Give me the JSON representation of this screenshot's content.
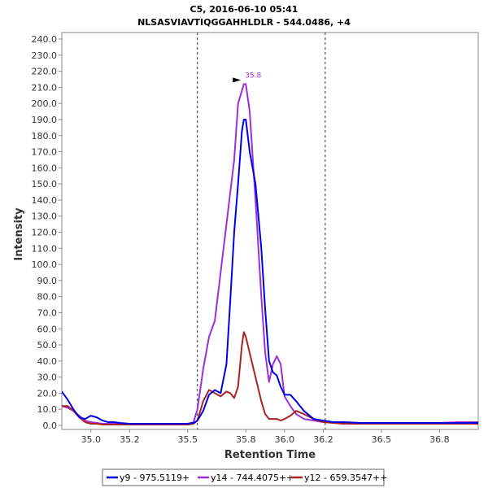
{
  "chart_data": {
    "type": "line",
    "title": "C5, 2016-06-10 05:41",
    "subtitle": "NLSASVIAVTIQGGAHHLDLR - 544.0486, +4",
    "xlabel": "Retention Time",
    "ylabel": "Intensity",
    "xlim": [
      34.85,
      37.0
    ],
    "ylim": [
      0,
      240
    ],
    "x_ticks": [
      35.0,
      35.2,
      35.5,
      35.8,
      36.0,
      36.2,
      36.5,
      36.8
    ],
    "x_tick_labels": [
      "35.0",
      "35.2",
      "35.5",
      "35.8",
      "36.0",
      "36.2",
      "36.5",
      "36.8"
    ],
    "y_ticks": [
      0,
      10,
      20,
      30,
      40,
      50,
      60,
      70,
      80,
      90,
      100,
      110,
      120,
      130,
      140,
      150,
      160,
      170,
      180,
      190,
      200,
      210,
      220,
      230,
      240
    ],
    "y_tick_labels": [
      "0.0",
      "10.0",
      "20.0",
      "30.0",
      "40.0",
      "50.0",
      "60.0",
      "70.0",
      "80.0",
      "90.0",
      "100.0",
      "110.0",
      "120.0",
      "130.0",
      "140.0",
      "150.0",
      "160.0",
      "170.0",
      "180.0",
      "190.0",
      "200.0",
      "210.0",
      "220.0",
      "230.0",
      "240.0"
    ],
    "integration_bounds": [
      35.55,
      36.21
    ],
    "peak_annotation": {
      "label": "35.8",
      "x": 35.8,
      "y": 212,
      "color": "#9b30d9"
    },
    "legend_placement": "bottom",
    "grid": false,
    "series": [
      {
        "name": "y9 - 975.5119+",
        "color": "#0000e6",
        "x": [
          34.85,
          34.88,
          34.91,
          34.94,
          34.97,
          35.0,
          35.03,
          35.06,
          35.09,
          35.12,
          35.15,
          35.2,
          35.25,
          35.3,
          35.35,
          35.4,
          35.45,
          35.5,
          35.53,
          35.55,
          35.58,
          35.61,
          35.64,
          35.67,
          35.7,
          35.72,
          35.74,
          35.76,
          35.78,
          35.79,
          35.8,
          35.82,
          35.85,
          35.88,
          35.9,
          35.92,
          35.94,
          35.96,
          35.98,
          36.0,
          36.03,
          36.06,
          36.1,
          36.15,
          36.2,
          36.25,
          36.3,
          36.4,
          36.5,
          36.6,
          36.7,
          36.8,
          36.9,
          37.0
        ],
        "y": [
          21,
          16,
          10,
          5,
          4,
          6,
          5,
          3,
          2,
          2,
          1.5,
          1,
          1,
          1,
          1,
          1,
          1,
          1,
          1.5,
          3,
          9,
          19,
          22,
          20,
          38,
          78,
          120,
          150,
          183,
          190,
          190,
          170,
          150,
          110,
          72,
          40,
          33,
          31,
          24,
          19,
          19,
          15,
          9,
          4,
          3,
          2,
          2,
          1.5,
          1.5,
          1.5,
          1.5,
          1.5,
          1.5,
          1.5
        ]
      },
      {
        "name": "y14 - 744.4075++",
        "color": "#9b30d9",
        "x": [
          34.85,
          34.88,
          34.91,
          34.94,
          34.97,
          35.0,
          35.03,
          35.06,
          35.09,
          35.12,
          35.15,
          35.2,
          35.25,
          35.3,
          35.35,
          35.4,
          35.45,
          35.5,
          35.53,
          35.55,
          35.58,
          35.61,
          35.64,
          35.67,
          35.7,
          35.72,
          35.74,
          35.76,
          35.78,
          35.79,
          35.8,
          35.82,
          35.85,
          35.88,
          35.9,
          35.92,
          35.94,
          35.96,
          35.98,
          36.0,
          36.03,
          36.06,
          36.1,
          36.15,
          36.2,
          36.25,
          36.3,
          36.4,
          36.5,
          36.6,
          36.7,
          36.8,
          36.9,
          37.0
        ],
        "y": [
          12,
          11,
          9,
          6,
          3,
          2,
          1.5,
          1,
          1,
          1,
          1,
          1,
          1,
          1,
          1,
          1,
          1,
          1,
          2,
          10,
          35,
          55,
          65,
          95,
          125,
          145,
          165,
          200,
          208,
          212,
          212,
          195,
          140,
          80,
          45,
          27,
          38,
          43,
          38,
          18,
          12,
          7,
          4,
          3,
          2,
          2,
          1.5,
          1.5,
          1.5,
          1.5,
          1.5,
          1.5,
          2,
          2
        ]
      },
      {
        "name": "y12 - 659.3547++",
        "color": "#aa2222",
        "x": [
          34.85,
          34.88,
          34.91,
          34.94,
          34.97,
          35.0,
          35.03,
          35.06,
          35.09,
          35.12,
          35.15,
          35.2,
          35.25,
          35.3,
          35.35,
          35.4,
          35.45,
          35.5,
          35.53,
          35.55,
          35.58,
          35.61,
          35.64,
          35.67,
          35.7,
          35.72,
          35.74,
          35.76,
          35.78,
          35.79,
          35.8,
          35.82,
          35.85,
          35.88,
          35.9,
          35.92,
          35.94,
          35.96,
          35.98,
          36.0,
          36.03,
          36.06,
          36.1,
          36.15,
          36.2,
          36.25,
          36.3,
          36.4,
          36.5,
          36.6,
          36.7,
          36.8,
          36.9,
          37.0
        ],
        "y": [
          12,
          12,
          9,
          5,
          2,
          1,
          1,
          0.5,
          0.5,
          0.5,
          0.5,
          0.5,
          0.5,
          0.5,
          0.5,
          0.5,
          0.5,
          0.5,
          1,
          3,
          15,
          22,
          20,
          18,
          21,
          20,
          17,
          24,
          50,
          58,
          55,
          45,
          30,
          15,
          7,
          4,
          4,
          4,
          3,
          4,
          6,
          9,
          7,
          4,
          2,
          1.5,
          1,
          1,
          1,
          1,
          1,
          1,
          1,
          1
        ]
      }
    ]
  }
}
